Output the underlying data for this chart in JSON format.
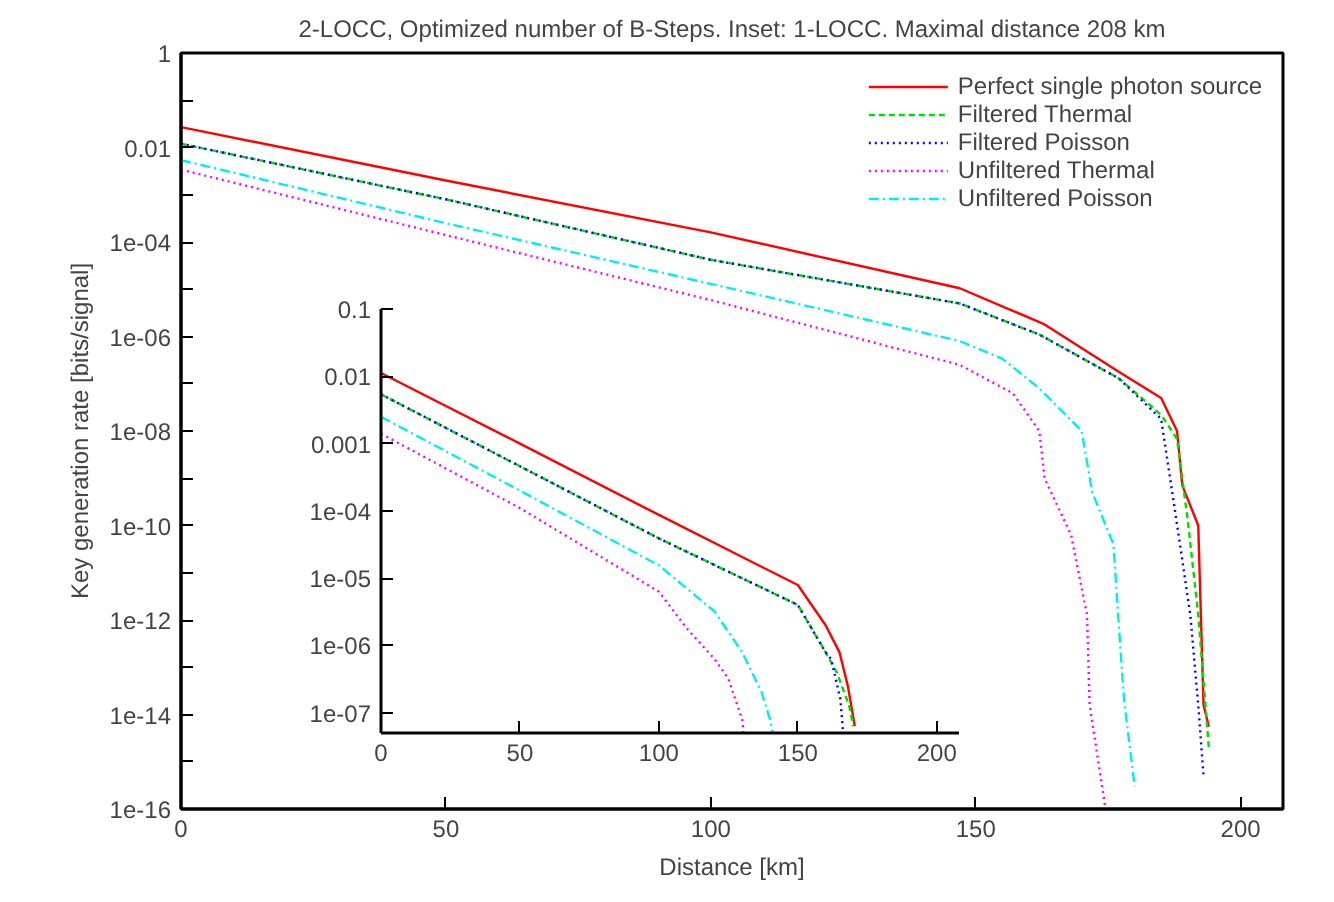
{
  "chart_data": [
    {
      "type": "line",
      "title": "2-LOCC, Optimized number of B-Steps. Inset: 1-LOCC. Maximal distance 208 km",
      "xlabel": "Distance [km]",
      "ylabel": "Key generation rate [bits/signal]",
      "log": "y",
      "xlim": [
        0,
        208
      ],
      "ylim": [
        1e-16,
        1
      ],
      "xticks": [
        0,
        50,
        100,
        150,
        200
      ],
      "yticks": [
        1,
        {
          "value": 0.1,
          "label": null
        },
        0.01,
        {
          "value": 0.001,
          "label": null
        },
        {
          "value": 0.0001,
          "label": "1e-04"
        },
        {
          "value": 1e-05,
          "label": null
        },
        {
          "value": 1e-06,
          "label": "1e-06"
        },
        {
          "value": 1e-07,
          "label": null
        },
        {
          "value": 1e-08,
          "label": "1e-08"
        },
        {
          "value": 1e-09,
          "label": null
        },
        {
          "value": 1e-10,
          "label": "1e-10"
        },
        {
          "value": 1e-11,
          "label": null
        },
        {
          "value": 1e-12,
          "label": "1e-12"
        },
        {
          "value": 1e-13,
          "label": null
        },
        {
          "value": 1e-14,
          "label": "1e-14"
        },
        {
          "value": 1e-15,
          "label": null
        },
        {
          "value": 1e-16,
          "label": "1e-16"
        }
      ],
      "grid": false,
      "legend": "top right",
      "marker": "none",
      "series": [
        {
          "name": "Perfect single photon source",
          "color": "#ff0000",
          "line_style": "solid",
          "x": [
            0,
            50,
            100,
            147,
            157,
            163,
            177,
            185,
            188,
            189,
            192,
            193,
            194
          ],
          "values": [
            0.027,
            0.002,
            0.00016,
            1.05e-05,
            3.5e-06,
            1.8e-06,
            1.8e-07,
            5e-08,
            1e-08,
            7e-10,
            1e-10,
            1.6e-14,
            5.5e-15
          ]
        },
        {
          "name": "Filtered Thermal",
          "color": "#00dd00",
          "line_style": "dashed",
          "x": [
            0,
            50,
            100,
            147,
            162,
            177,
            185,
            188,
            190,
            192,
            194
          ],
          "values": [
            0.012,
            0.0008,
            4.2e-05,
            5e-06,
            1.1e-06,
            1.3e-07,
            2.2e-08,
            6.8e-09,
            1.35e-10,
            1.3e-12,
            2e-15
          ]
        },
        {
          "name": "Filtered Poisson",
          "color": "#0000ff",
          "line_style": "dotted",
          "x": [
            0,
            50,
            100,
            147,
            162,
            177,
            185,
            187.5,
            190.5,
            192,
            193
          ],
          "values": [
            0.012,
            0.0008,
            4.2e-05,
            5e-06,
            1.1e-06,
            1.3e-07,
            1.8e-08,
            2.5e-10,
            1.3e-12,
            1.6e-14,
            5e-16
          ]
        },
        {
          "name": "Unfiltered Thermal",
          "color": "#ff00ff",
          "line_style": "dotted",
          "x": [
            0,
            50,
            100,
            147,
            157,
            162,
            163,
            168,
            171,
            171.5,
            174.5
          ],
          "values": [
            0.0034,
            0.00014,
            5.9e-06,
            2.5e-07,
            6.3e-08,
            1e-08,
            1e-09,
            6.3e-11,
            1.3e-12,
            1.6e-14,
            1e-16
          ]
        },
        {
          "name": "Unfiltered Poisson",
          "color": "#00eeee",
          "line_style": "dashdot",
          "x": [
            0,
            50,
            100,
            147,
            155,
            162,
            170,
            172,
            176,
            177,
            178,
            180
          ],
          "values": [
            0.0054,
            0.00025,
            1.3e-05,
            8e-07,
            3.4e-07,
            8e-08,
            1e-08,
            5e-10,
            4e-11,
            8e-13,
            2e-14,
            3e-16
          ]
        }
      ]
    },
    {
      "type": "line",
      "log": "y",
      "xlim": [
        0,
        208
      ],
      "ylim": [
        5e-08,
        0.1
      ],
      "xticks": [
        0,
        50,
        100,
        150,
        200
      ],
      "yticks": [
        0.1,
        0.01,
        0.001,
        {
          "value": 0.0001,
          "label": "1e-04"
        },
        {
          "value": 1e-05,
          "label": "1e-05"
        },
        {
          "value": 1e-06,
          "label": "1e-06"
        },
        {
          "value": 1e-07,
          "label": "1e-07"
        }
      ],
      "grid": false,
      "legend": false,
      "marker": "none",
      "series": [
        {
          "color": "#ff0000",
          "line_style": "solid",
          "x": [
            0,
            50,
            100,
            150,
            160,
            165,
            168,
            170.5
          ],
          "values": [
            0.0112,
            0.001,
            8.7e-05,
            7.9e-06,
            2e-06,
            7.9e-07,
            2.5e-07,
            6.3e-08
          ]
        },
        {
          "color": "#00dd00",
          "line_style": "dashed",
          "x": [
            0,
            50,
            100,
            150,
            160,
            164,
            168.4,
            170
          ],
          "values": [
            0.0054,
            0.00046,
            3.9e-05,
            4e-06,
            7.9e-07,
            4e-07,
            1.3e-07,
            6.3e-08
          ]
        },
        {
          "color": "#0000ff",
          "line_style": "dotted",
          "x": [
            0,
            50,
            100,
            150,
            160,
            162,
            165.3,
            166.3
          ],
          "values": [
            0.0054,
            0.00046,
            3.9e-05,
            4e-06,
            7.9e-07,
            6.3e-07,
            1.6e-07,
            5e-08
          ]
        },
        {
          "color": "#ff00ff",
          "line_style": "dotted",
          "x": [
            0,
            50,
            100,
            110,
            120,
            125,
            130,
            130.5
          ],
          "values": [
            0.0014,
            0.00011,
            6.3e-06,
            1.8e-06,
            6.3e-07,
            3.2e-07,
            7.9e-08,
            5e-08
          ]
        },
        {
          "color": "#00eeee",
          "line_style": "dashdot",
          "x": [
            0,
            50,
            100,
            120,
            130,
            137,
            140,
            141
          ],
          "values": [
            0.0025,
            0.0002,
            1.55e-05,
            3.2e-06,
            7.9e-07,
            2e-07,
            7.9e-08,
            5e-08
          ]
        }
      ]
    }
  ]
}
